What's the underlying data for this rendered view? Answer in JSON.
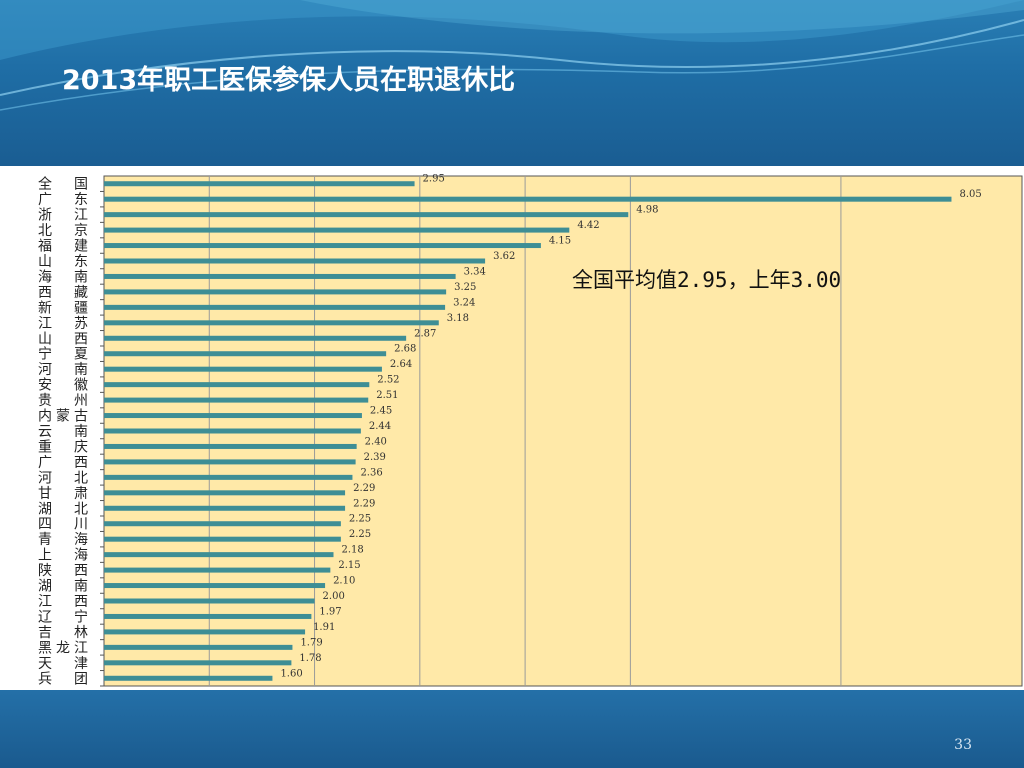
{
  "slide": {
    "title": "2013年职工医保参保人员在职退休比",
    "page_number": "33",
    "annotation": "全国平均值2.95，上年3.00"
  },
  "colors": {
    "plot_background": "#FFE9A8",
    "bar": "#3E8E95",
    "grid": "#9a9a9a"
  },
  "chart_data": {
    "type": "bar",
    "orientation": "horizontal",
    "categories": [
      "全国",
      "广东",
      "浙江",
      "北京",
      "福建",
      "山东",
      "海南",
      "西藏",
      "新疆",
      "江苏",
      "山西",
      "宁夏",
      "河南",
      "安徽",
      "贵州",
      "内蒙古",
      "云南",
      "重庆",
      "广西",
      "河北",
      "甘肃",
      "湖北",
      "四川",
      "青海",
      "上海",
      "陕西",
      "湖南",
      "江西",
      "辽宁",
      "吉林",
      "黑龙江",
      "天津",
      "兵团"
    ],
    "values": [
      2.95,
      8.05,
      4.98,
      4.42,
      4.15,
      3.62,
      3.34,
      3.25,
      3.24,
      3.18,
      2.87,
      2.68,
      2.64,
      2.52,
      2.51,
      2.45,
      2.44,
      2.4,
      2.39,
      2.36,
      2.29,
      2.29,
      2.25,
      2.25,
      2.18,
      2.15,
      2.1,
      2.0,
      1.97,
      1.91,
      1.79,
      1.78,
      1.6
    ],
    "value_labels": [
      "2.95",
      "8.05",
      "4.98",
      "4.42",
      "4.15",
      "3.62",
      "3.34",
      "3.25",
      "3.24",
      "3.18",
      "2.87",
      "2.68",
      "2.64",
      "2.52",
      "2.51",
      "2.45",
      "2.44",
      "2.40",
      "2.39",
      "2.36",
      "2.29",
      "2.29",
      "2.25",
      "2.25",
      "2.18",
      "2.15",
      "2.10",
      "2.00",
      "1.97",
      "1.91",
      "1.79",
      "1.78",
      "1.60"
    ],
    "xlim": [
      0,
      8.72
    ],
    "gridline_values": [
      1,
      2,
      3,
      4,
      5,
      7
    ],
    "grid": true,
    "legend": "none"
  }
}
